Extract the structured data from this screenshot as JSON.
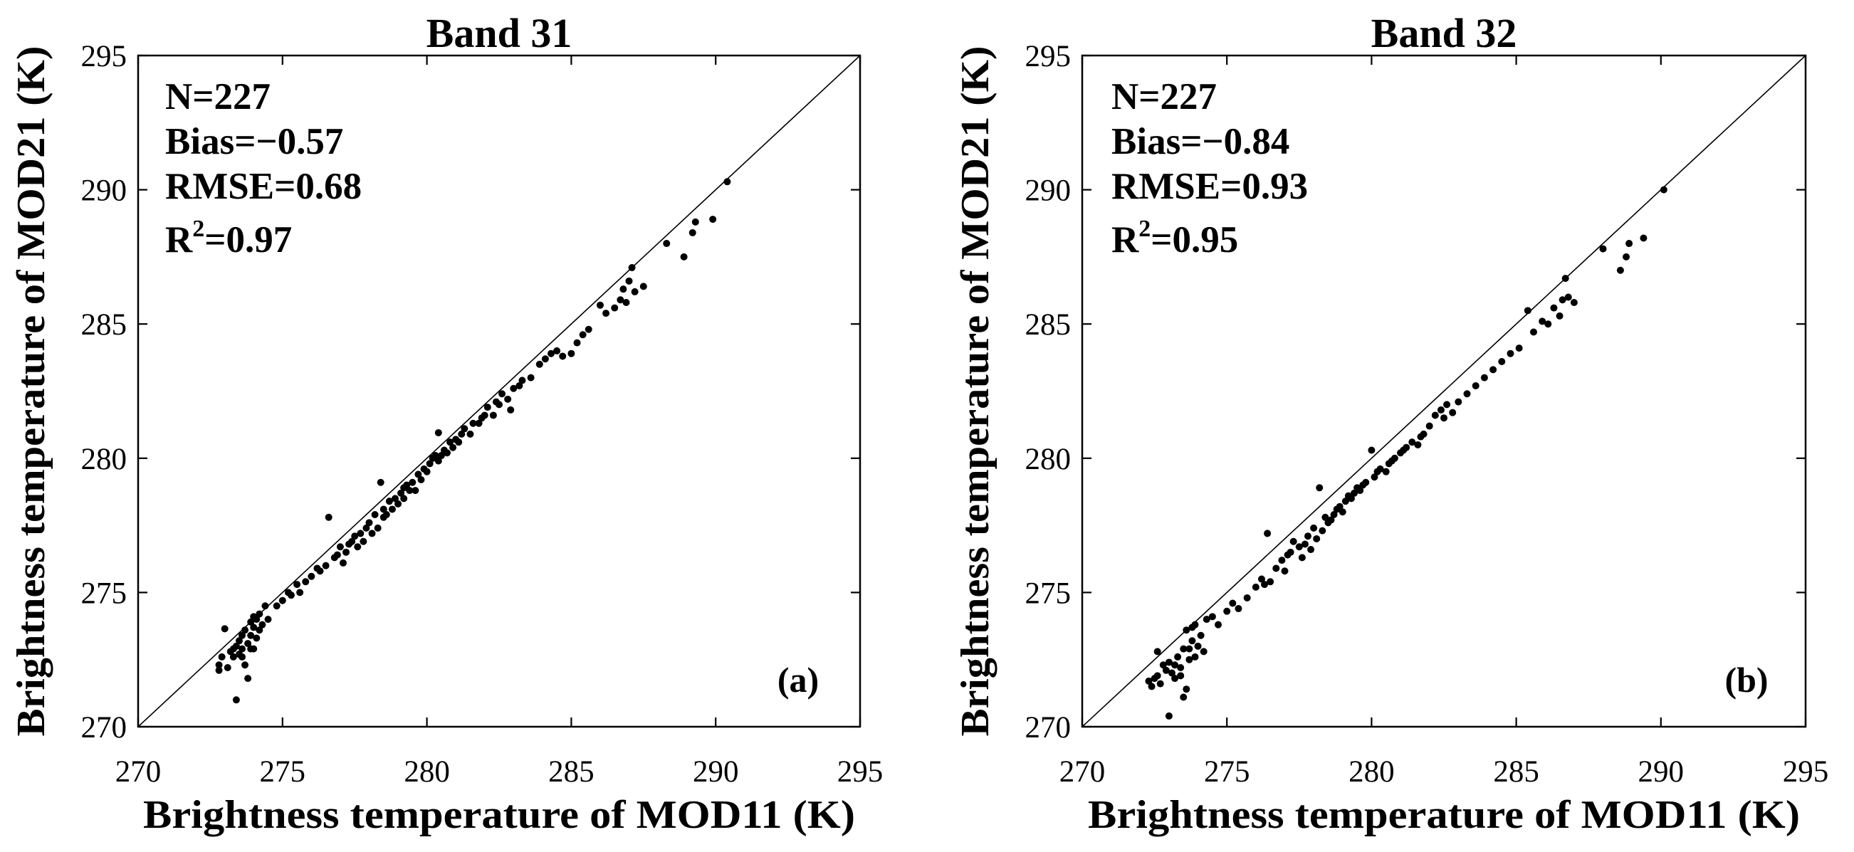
{
  "chart_data": [
    {
      "type": "scatter",
      "title": "Band 31",
      "xlabel": "Brightness temperature of MOD11 (K)",
      "ylabel": "Brightness temperature of MOD21 (K)",
      "xlim": [
        270,
        295
      ],
      "ylim": [
        270,
        295
      ],
      "xticks": [
        270,
        275,
        280,
        285,
        290,
        295
      ],
      "yticks": [
        270,
        275,
        280,
        285,
        290,
        295
      ],
      "grid": false,
      "stats": {
        "n": "N=227",
        "bias": "Bias=−0.57",
        "rmse": "RMSE=0.68",
        "r2_base": "R",
        "r2_sup": "2",
        "r2_value": "=0.97"
      },
      "panel_label": "(a)",
      "points": [
        [
          272.8,
          272.3
        ],
        [
          272.8,
          272.1
        ],
        [
          272.9,
          272.6
        ],
        [
          273.0,
          273.65
        ],
        [
          273.1,
          272.2
        ],
        [
          273.2,
          272.8
        ],
        [
          273.3,
          272.9
        ],
        [
          273.4,
          271.0
        ],
        [
          273.4,
          273.0
        ],
        [
          273.5,
          272.7
        ],
        [
          273.5,
          273.2
        ],
        [
          273.6,
          272.9
        ],
        [
          273.6,
          273.4
        ],
        [
          273.7,
          272.3
        ],
        [
          273.7,
          273.6
        ],
        [
          273.8,
          271.8
        ],
        [
          273.8,
          273.1
        ],
        [
          273.9,
          273.9
        ],
        [
          273.9,
          273.4
        ],
        [
          274.0,
          274.1
        ],
        [
          274.0,
          273.7
        ],
        [
          274.1,
          273.3
        ],
        [
          274.1,
          274.0
        ],
        [
          274.2,
          274.2
        ],
        [
          274.2,
          273.6
        ],
        [
          274.3,
          273.8
        ],
        [
          274.4,
          274.5
        ],
        [
          274.5,
          274.0
        ],
        [
          273.6,
          272.6
        ],
        [
          274.0,
          272.9
        ],
        [
          273.3,
          272.6
        ],
        [
          273.9,
          272.9
        ],
        [
          274.8,
          274.5
        ],
        [
          275.0,
          274.7
        ],
        [
          275.2,
          275.0
        ],
        [
          275.3,
          274.9
        ],
        [
          275.5,
          275.3
        ],
        [
          275.6,
          275.0
        ],
        [
          275.8,
          275.4
        ],
        [
          276.0,
          275.6
        ],
        [
          276.2,
          275.9
        ],
        [
          276.3,
          275.8
        ],
        [
          276.5,
          276.0
        ],
        [
          276.6,
          277.8
        ],
        [
          276.8,
          276.3
        ],
        [
          276.9,
          276.4
        ],
        [
          277.0,
          276.7
        ],
        [
          277.1,
          276.1
        ],
        [
          277.2,
          276.5
        ],
        [
          277.3,
          276.8
        ],
        [
          277.4,
          276.9
        ],
        [
          277.5,
          277.1
        ],
        [
          277.6,
          276.7
        ],
        [
          277.7,
          277.2
        ],
        [
          277.8,
          276.9
        ],
        [
          277.9,
          277.4
        ],
        [
          278.0,
          277.6
        ],
        [
          278.1,
          277.2
        ],
        [
          278.2,
          277.9
        ],
        [
          278.3,
          277.4
        ],
        [
          278.4,
          279.1
        ],
        [
          278.5,
          278.1
        ],
        [
          278.5,
          277.8
        ],
        [
          278.6,
          277.9
        ],
        [
          278.7,
          278.4
        ],
        [
          278.8,
          278.1
        ],
        [
          278.9,
          278.5
        ],
        [
          279.0,
          278.3
        ],
        [
          279.1,
          278.7
        ],
        [
          279.2,
          278.5
        ],
        [
          279.2,
          278.9
        ],
        [
          279.3,
          279.0
        ],
        [
          279.4,
          278.8
        ],
        [
          279.5,
          279.1
        ],
        [
          279.6,
          278.8
        ],
        [
          279.7,
          279.4
        ],
        [
          279.8,
          279.2
        ],
        [
          279.9,
          279.6
        ],
        [
          280.0,
          279.5
        ],
        [
          280.1,
          279.8
        ],
        [
          280.2,
          280.0
        ],
        [
          280.3,
          280.1
        ],
        [
          280.4,
          280.95
        ],
        [
          280.4,
          279.9
        ],
        [
          280.5,
          280.1
        ],
        [
          280.6,
          280.3
        ],
        [
          280.7,
          280.2
        ],
        [
          280.8,
          280.6
        ],
        [
          280.9,
          280.4
        ],
        [
          281.0,
          280.7
        ],
        [
          281.1,
          280.6
        ],
        [
          281.2,
          280.9
        ],
        [
          281.3,
          281.1
        ],
        [
          281.5,
          280.9
        ],
        [
          281.6,
          281.3
        ],
        [
          281.8,
          281.3
        ],
        [
          281.9,
          281.5
        ],
        [
          282.0,
          281.6
        ],
        [
          282.1,
          281.9
        ],
        [
          282.3,
          281.6
        ],
        [
          282.4,
          282.1
        ],
        [
          282.5,
          282.0
        ],
        [
          282.6,
          282.4
        ],
        [
          282.8,
          282.2
        ],
        [
          282.9,
          281.8
        ],
        [
          283.0,
          282.6
        ],
        [
          283.2,
          282.7
        ],
        [
          283.3,
          282.9
        ],
        [
          283.6,
          283.0
        ],
        [
          283.9,
          283.5
        ],
        [
          284.1,
          283.7
        ],
        [
          284.3,
          283.9
        ],
        [
          284.5,
          284.0
        ],
        [
          284.7,
          283.8
        ],
        [
          285.0,
          283.9
        ],
        [
          285.2,
          284.3
        ],
        [
          285.4,
          284.6
        ],
        [
          285.6,
          284.8
        ],
        [
          286.0,
          285.7
        ],
        [
          286.2,
          285.4
        ],
        [
          286.5,
          285.6
        ],
        [
          286.7,
          285.9
        ],
        [
          286.8,
          286.3
        ],
        [
          286.9,
          285.8
        ],
        [
          287.0,
          286.6
        ],
        [
          287.1,
          287.1
        ],
        [
          287.2,
          286.2
        ],
        [
          287.5,
          286.4
        ],
        [
          288.3,
          288.0
        ],
        [
          288.9,
          287.5
        ],
        [
          289.2,
          288.4
        ],
        [
          289.3,
          288.8
        ],
        [
          289.9,
          288.9
        ],
        [
          290.4,
          290.3
        ]
      ]
    },
    {
      "type": "scatter",
      "title": "Band 32",
      "xlabel": "Brightness temperature of MOD11 (K)",
      "ylabel": "Brightness temperature of MOD21 (K)",
      "xlim": [
        270,
        295
      ],
      "ylim": [
        270,
        295
      ],
      "xticks": [
        270,
        275,
        280,
        285,
        290,
        295
      ],
      "yticks": [
        270,
        275,
        280,
        285,
        290,
        295
      ],
      "grid": false,
      "stats": {
        "n": "N=227",
        "bias": "Bias=−0.84",
        "rmse": "RMSE=0.93",
        "r2_base": "R",
        "r2_sup": "2",
        "r2_value": "=0.95"
      },
      "panel_label": "(b)",
      "points": [
        [
          272.3,
          271.7
        ],
        [
          272.4,
          271.5
        ],
        [
          272.5,
          271.8
        ],
        [
          272.6,
          272.8
        ],
        [
          272.7,
          271.6
        ],
        [
          272.8,
          272.3
        ],
        [
          272.9,
          272.1
        ],
        [
          273.0,
          272.4
        ],
        [
          273.0,
          270.4
        ],
        [
          273.1,
          272.0
        ],
        [
          273.2,
          271.8
        ],
        [
          273.3,
          272.6
        ],
        [
          273.4,
          272.2
        ],
        [
          273.5,
          271.1
        ],
        [
          273.5,
          272.9
        ],
        [
          273.6,
          273.6
        ],
        [
          273.6,
          271.4
        ],
        [
          273.7,
          272.5
        ],
        [
          273.8,
          273.2
        ],
        [
          273.8,
          273.7
        ],
        [
          273.9,
          273.8
        ],
        [
          274.0,
          273.0
        ],
        [
          274.1,
          273.4
        ],
        [
          274.2,
          272.8
        ],
        [
          274.3,
          274.0
        ],
        [
          274.5,
          274.1
        ],
        [
          274.7,
          273.8
        ],
        [
          273.2,
          272.3
        ],
        [
          273.4,
          271.9
        ],
        [
          273.7,
          272.9
        ],
        [
          272.6,
          271.9
        ],
        [
          273.9,
          272.6
        ],
        [
          275.0,
          274.3
        ],
        [
          275.2,
          274.6
        ],
        [
          275.4,
          274.4
        ],
        [
          275.7,
          274.8
        ],
        [
          276.0,
          275.2
        ],
        [
          276.2,
          275.5
        ],
        [
          276.3,
          275.3
        ],
        [
          276.4,
          277.2
        ],
        [
          276.5,
          275.4
        ],
        [
          276.7,
          275.9
        ],
        [
          276.9,
          276.2
        ],
        [
          277.0,
          275.8
        ],
        [
          277.1,
          276.4
        ],
        [
          277.2,
          276.5
        ],
        [
          277.3,
          276.9
        ],
        [
          277.5,
          276.7
        ],
        [
          277.6,
          276.3
        ],
        [
          277.7,
          276.8
        ],
        [
          277.8,
          277.1
        ],
        [
          277.9,
          276.6
        ],
        [
          278.0,
          277.4
        ],
        [
          278.1,
          277.0
        ],
        [
          278.2,
          278.9
        ],
        [
          278.3,
          277.3
        ],
        [
          278.4,
          277.8
        ],
        [
          278.5,
          277.6
        ],
        [
          278.6,
          277.7
        ],
        [
          278.7,
          277.9
        ],
        [
          278.8,
          278.1
        ],
        [
          278.9,
          278.2
        ],
        [
          279.0,
          278.0
        ],
        [
          279.1,
          278.4
        ],
        [
          279.2,
          278.6
        ],
        [
          279.3,
          278.5
        ],
        [
          279.4,
          278.7
        ],
        [
          279.5,
          278.9
        ],
        [
          279.6,
          278.8
        ],
        [
          279.7,
          279.0
        ],
        [
          279.8,
          279.1
        ],
        [
          280.0,
          280.3
        ],
        [
          280.1,
          279.3
        ],
        [
          280.2,
          279.5
        ],
        [
          280.3,
          279.6
        ],
        [
          280.5,
          279.5
        ],
        [
          280.6,
          279.8
        ],
        [
          280.7,
          279.9
        ],
        [
          280.8,
          280.0
        ],
        [
          281.0,
          280.2
        ],
        [
          281.1,
          280.3
        ],
        [
          281.2,
          280.4
        ],
        [
          281.4,
          280.6
        ],
        [
          281.6,
          280.5
        ],
        [
          281.7,
          280.8
        ],
        [
          281.8,
          280.9
        ],
        [
          282.0,
          281.2
        ],
        [
          282.2,
          281.6
        ],
        [
          282.4,
          281.8
        ],
        [
          282.5,
          281.5
        ],
        [
          282.6,
          282.0
        ],
        [
          282.8,
          281.7
        ],
        [
          283.0,
          282.1
        ],
        [
          283.3,
          282.4
        ],
        [
          283.6,
          282.7
        ],
        [
          283.9,
          283.0
        ],
        [
          284.2,
          283.3
        ],
        [
          284.5,
          283.6
        ],
        [
          284.8,
          283.9
        ],
        [
          285.1,
          284.1
        ],
        [
          285.4,
          285.5
        ],
        [
          285.6,
          284.7
        ],
        [
          285.9,
          285.1
        ],
        [
          286.1,
          285.0
        ],
        [
          286.3,
          285.6
        ],
        [
          286.5,
          285.3
        ],
        [
          286.6,
          285.9
        ],
        [
          286.7,
          286.7
        ],
        [
          286.8,
          286.0
        ],
        [
          287.0,
          285.8
        ],
        [
          288.0,
          287.8
        ],
        [
          288.6,
          287.0
        ],
        [
          288.8,
          287.5
        ],
        [
          288.9,
          288.0
        ],
        [
          289.4,
          288.2
        ],
        [
          290.1,
          290.0
        ]
      ]
    }
  ]
}
